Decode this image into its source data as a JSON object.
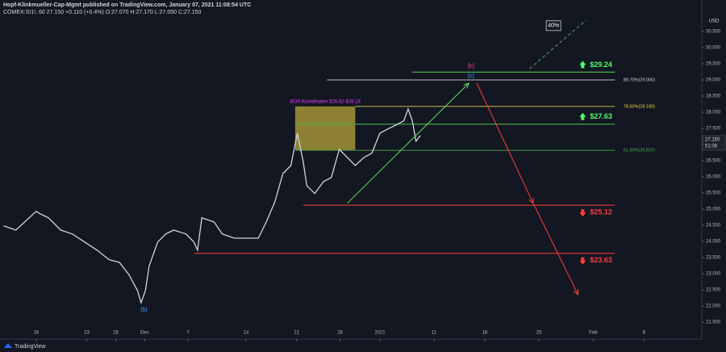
{
  "chart_data": {
    "type": "line",
    "header": "Hopf-Klinkmueller-Cap-Mgmt published on TradingView.com, January 07, 2021 11:08:54 UTC",
    "symbol_line": "COMEX:SI1!, 60  27.150  +0.110 (+0.4%)  O:27.070  H:27.170  L:27.050  C:27.150",
    "currency": "USD",
    "footer": "TradingView",
    "last_price": {
      "value": 27.15,
      "label": "27.150"
    },
    "countdown": "51:08",
    "x": [
      -4.5,
      -2.8,
      0,
      0.6,
      1.7,
      3.4,
      5.0,
      6.7,
      8.4,
      10.1,
      11.5,
      12.8,
      14.0,
      14.5,
      15.1,
      15.6,
      16.8,
      17.9,
      19.0,
      20.7,
      21.8,
      22.3,
      22.9,
      24.6,
      25.7,
      27.4,
      29.1,
      30.7,
      31.8,
      33.0,
      34.1,
      35.2,
      36.1,
      36.9,
      37.4,
      38.5,
      39.7,
      40.8,
      41.9,
      43.0,
      44.1,
      45.3,
      46.4,
      47.5,
      48.6,
      49.7,
      50.8,
      51.4,
      52.0,
      52.5,
      53.1
    ],
    "series": [
      {
        "name": "COMEX:SI1!",
        "color": "#d1d4dc",
        "values": [
          24.48,
          24.35,
          24.93,
          24.85,
          24.73,
          24.35,
          24.23,
          23.98,
          23.73,
          23.43,
          23.35,
          22.98,
          22.48,
          22.1,
          22.48,
          23.23,
          23.98,
          24.23,
          24.35,
          24.23,
          23.98,
          23.73,
          24.73,
          24.6,
          24.23,
          24.1,
          24.1,
          24.1,
          24.6,
          25.23,
          26.1,
          26.35,
          27.35,
          26.48,
          25.73,
          25.48,
          25.85,
          25.98,
          26.85,
          26.6,
          26.35,
          26.6,
          26.73,
          27.35,
          27.48,
          27.6,
          27.73,
          28.1,
          27.73,
          27.1,
          27.28
        ]
      }
    ],
    "xlim": [
      -5,
      92
    ],
    "ylim": [
      20.975,
      31.475
    ],
    "xticks": [
      {
        "value": 0,
        "label": "16"
      },
      {
        "value": 7,
        "label": "23"
      },
      {
        "value": 11,
        "label": "26"
      },
      {
        "value": 15,
        "label": "Dec"
      },
      {
        "value": 21,
        "label": "7"
      },
      {
        "value": 29,
        "label": "14"
      },
      {
        "value": 36,
        "label": "21"
      },
      {
        "value": 42,
        "label": "28"
      },
      {
        "value": 47.5,
        "label": "2021"
      },
      {
        "value": 55,
        "label": "11"
      },
      {
        "value": 62,
        "label": "18"
      },
      {
        "value": 69.5,
        "label": "25"
      },
      {
        "value": 77,
        "label": "Feb"
      },
      {
        "value": 84,
        "label": "8"
      }
    ],
    "yticks": [
      {
        "value": 21.5,
        "label": "21.500"
      },
      {
        "value": 22,
        "label": "22.000"
      },
      {
        "value": 22.5,
        "label": "22.500"
      },
      {
        "value": 23,
        "label": "23.000"
      },
      {
        "value": 23.5,
        "label": "23.500"
      },
      {
        "value": 24,
        "label": "24.000"
      },
      {
        "value": 24.5,
        "label": "24.500"
      },
      {
        "value": 25,
        "label": "25.000"
      },
      {
        "value": 25.5,
        "label": "25.500"
      },
      {
        "value": 26,
        "label": "26.000"
      },
      {
        "value": 26.5,
        "label": "26.500"
      },
      {
        "value": 27,
        "label": "27.000"
      },
      {
        "value": 27.5,
        "label": "27.500"
      },
      {
        "value": 28,
        "label": "28.000"
      },
      {
        "value": 28.5,
        "label": "28.500"
      },
      {
        "value": 29,
        "label": "29.000"
      },
      {
        "value": 29.5,
        "label": "29.500"
      },
      {
        "value": 30,
        "label": "30.000"
      },
      {
        "value": 30.5,
        "label": "30.500"
      }
    ],
    "levels": [
      {
        "value": 29.24,
        "label": "$29.24",
        "x": [
          52,
          80
        ],
        "color": "#4caf50",
        "label_color": "#4cff6a",
        "arrow": "up"
      },
      {
        "value": 29.0,
        "label": "88.70%(29.000)",
        "x": [
          40.2,
          80
        ],
        "color": "#9598a1",
        "label_color": "#d1d4dc"
      },
      {
        "value": 28.18,
        "label": "78.60%(28.180)",
        "x": [
          44.1,
          80
        ],
        "color": "#b8a84a",
        "label_color": "#f5d742"
      },
      {
        "value": 27.63,
        "label": "$27.63",
        "x": [
          35.8,
          80
        ],
        "color": "#4caf50",
        "label_color": "#4cff6a",
        "arrow": "up"
      },
      {
        "value": 26.82,
        "label": "61.80%(26.820)",
        "x": [
          35.8,
          80
        ],
        "color": "#3c8c3c",
        "label_color": "#4caf50"
      },
      {
        "value": 25.12,
        "label": "$25.12",
        "x": [
          36.9,
          80
        ],
        "color": "#e53935",
        "label_color": "#ff3b3b",
        "arrow": "down"
      },
      {
        "value": 23.63,
        "label": "$23.63",
        "x": [
          21.8,
          80
        ],
        "color": "#e53935",
        "label_color": "#ff3b3b",
        "arrow": "down"
      }
    ],
    "box": {
      "label": "BOX-Koordinaten $26.82-$28.18",
      "x": [
        35.8,
        44.1
      ],
      "y": [
        26.82,
        28.18
      ],
      "color": "#b7a53a",
      "label_color": "#e040fb"
    },
    "arrows": [
      {
        "x": [
          43.0,
          59.8
        ],
        "y": [
          25.18,
          28.9
        ],
        "color": "#5fe35f"
      },
      {
        "x": [
          60.9,
          68.7
        ],
        "y": [
          28.9,
          25.18
        ],
        "color": "#ff3b3b"
      },
      {
        "x": [
          68.7,
          74.9
        ],
        "y": [
          25.18,
          22.35
        ],
        "color": "#ff3b3b"
      },
      {
        "x": [
          68.2,
          76.0
        ],
        "y": [
          29.35,
          30.85
        ],
        "color": "#4caf50",
        "dashed": true
      }
    ],
    "wave_labels": [
      {
        "text": "[b]",
        "x": 60.1,
        "y": 29.42,
        "color": "#e8467c"
      },
      {
        "text": "(c)",
        "x": 60.1,
        "y": 29.12,
        "color": "#4aa3ff"
      },
      {
        "text": "(b)",
        "x": 14.9,
        "y": 21.88,
        "color": "#4aa3ff"
      }
    ],
    "badge": {
      "text": "40%",
      "x": 71.5,
      "y": 30.68
    }
  }
}
